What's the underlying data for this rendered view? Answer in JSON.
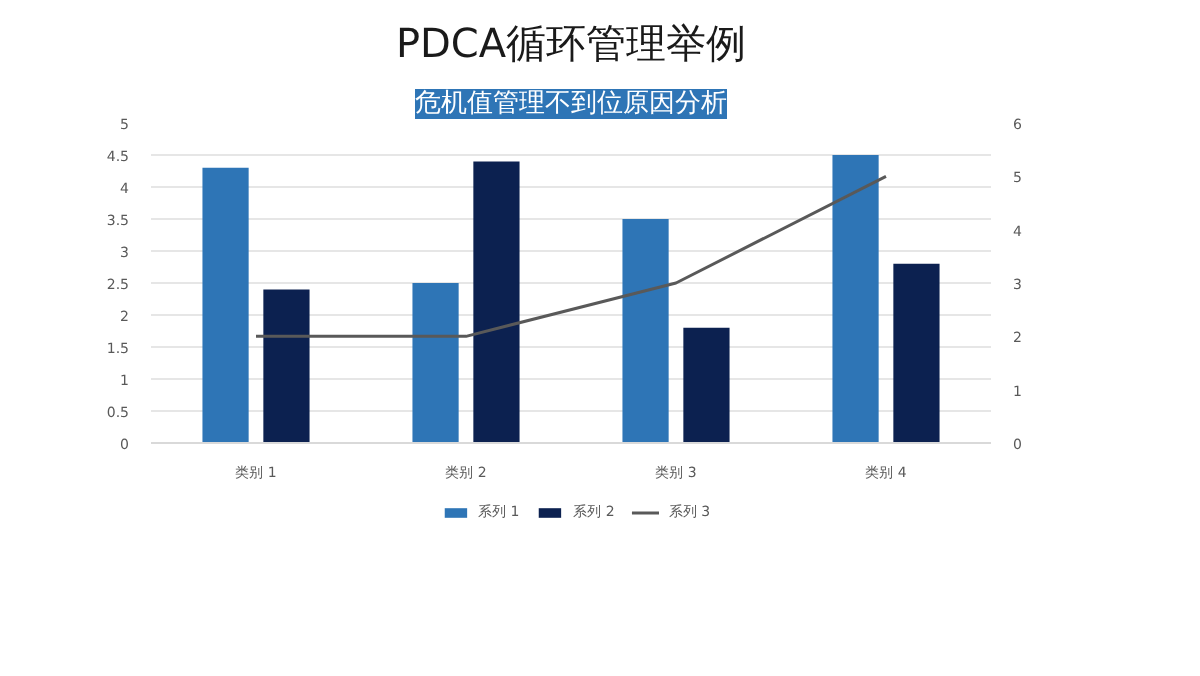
{
  "chart_data": {
    "type": "bar",
    "title": "PDCA循环管理举例",
    "subtitle": "危机值管理不到位原因分析",
    "categories": [
      "类别 1",
      "类别 2",
      "类别 3",
      "类别 4"
    ],
    "series": [
      {
        "name": "系列 1",
        "color": "#2e75b6",
        "values": [
          4.3,
          2.5,
          3.5,
          4.5
        ]
      },
      {
        "name": "系列 2",
        "color": "#0c2150",
        "values": [
          2.4,
          4.4,
          1.8,
          2.8
        ]
      },
      {
        "name": "系列 3",
        "color": "#595959",
        "values": [
          2,
          2,
          3,
          5
        ],
        "type": "line",
        "axis": "y2"
      }
    ],
    "ylim": [
      0,
      5
    ],
    "yticks": [
      0,
      0.5,
      1,
      1.5,
      2,
      2.5,
      3,
      3.5,
      4,
      4.5,
      5
    ],
    "y2lim": [
      0,
      6
    ],
    "y2ticks": [
      0,
      1,
      2,
      3,
      4,
      5,
      6
    ],
    "grid": "y",
    "legend": "bottom",
    "line_style": "solid",
    "marker": "none"
  }
}
